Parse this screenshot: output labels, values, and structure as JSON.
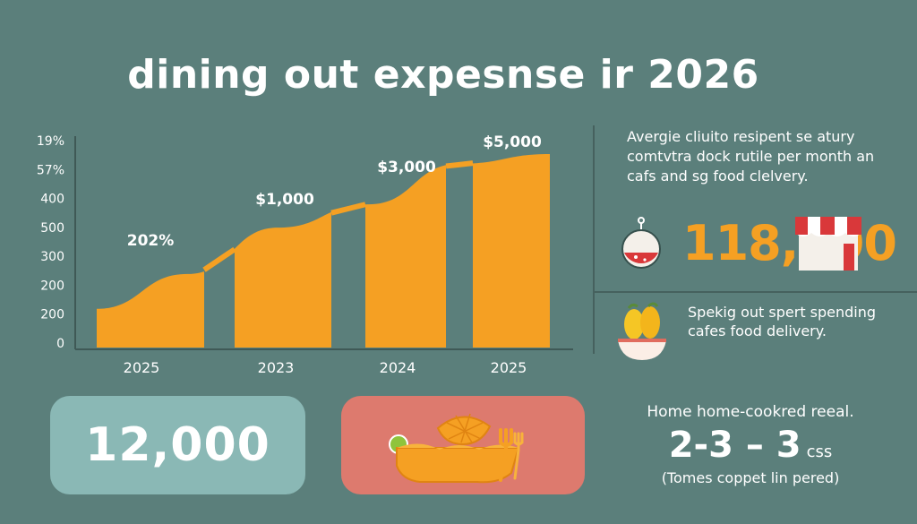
{
  "title": "dining out expesnse ir 2026",
  "chart_data": {
    "type": "area",
    "y_tick_labels": [
      "19%",
      "57%",
      "400",
      "500",
      "300",
      "200",
      "200",
      "0"
    ],
    "x_tick_labels": [
      "2025",
      "2023",
      "2024",
      "2025"
    ],
    "annotations": [
      "202%",
      "$1,000",
      "$3,000",
      "$5,000"
    ],
    "series": [
      {
        "values": [
          20,
          38,
          62,
          74,
          95,
          100
        ]
      }
    ],
    "colors": {
      "fill": "#f5a023",
      "gap": "#5b7f7b",
      "axis": "#3f5956"
    }
  },
  "side": {
    "description": "Avergie cliuito resipent se atury comtvtra dock rutile per month an cafs and sg food clelvery.",
    "stat_value": "118,000",
    "stat_icon": "cocktail-glass-icon",
    "store_icon": "storefront-awning-icon",
    "description2": "Spekig out spert spending cafes food delivery.",
    "bowl_icon": "fruit-bowl-icon"
  },
  "cards": {
    "left_value": "12,000",
    "right_icon": "taco-food-fork-icon"
  },
  "home": {
    "title": "Home home-cookred reeal.",
    "value": "2-3 – 3",
    "unit": "css",
    "note": "(Tomes coppet lin pered)"
  },
  "colors": {
    "background": "#5b7f7b",
    "accent": "#f5a023",
    "teal_card": "#8ab8b5",
    "pink_card": "#dd7a6e"
  }
}
